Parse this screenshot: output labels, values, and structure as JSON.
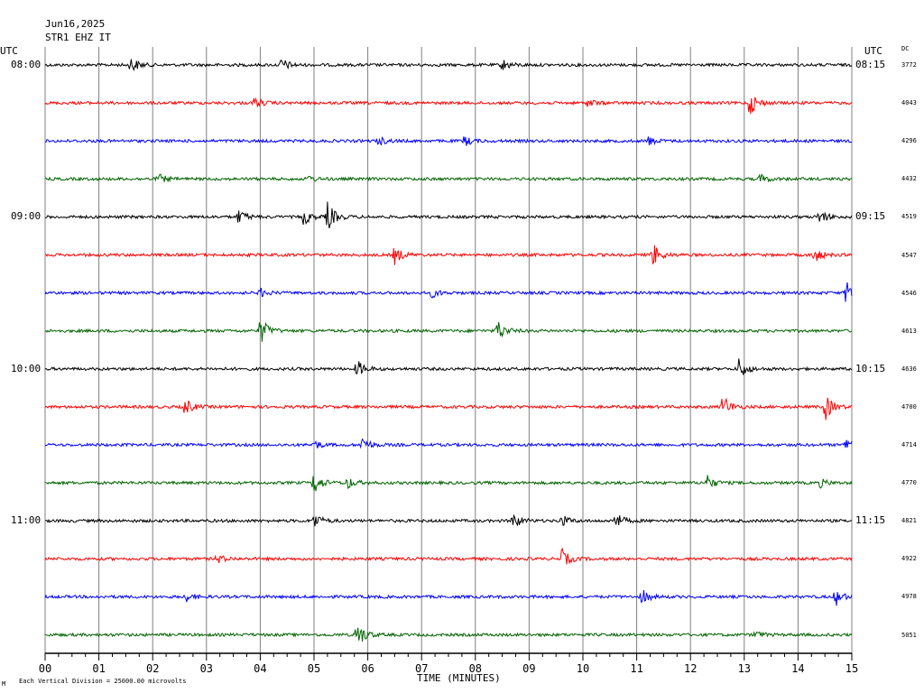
{
  "header": {
    "date": "Jun16,2025",
    "station": "STR1 EHZ IT",
    "utc_left": "UTC",
    "utc_right": "UTC",
    "dc_label": "DC"
  },
  "footer": {
    "xlabel": "TIME (MINUTES)",
    "scale_note": "Each Vertical Division = 25000.00 microvolts",
    "corner_mark": "M"
  },
  "colors": {
    "cycle": [
      "#000000",
      "#ff0000",
      "#0000ff",
      "#006400"
    ],
    "grid": "#808080"
  },
  "chart_data": {
    "type": "line",
    "title": "Jun16,2025",
    "subtitle": "STR1 EHZ IT",
    "xlabel": "TIME (MINUTES)",
    "xlim": [
      0,
      15
    ],
    "xticks": [
      "00",
      "01",
      "02",
      "03",
      "04",
      "05",
      "06",
      "07",
      "08",
      "09",
      "10",
      "11",
      "12",
      "13",
      "14",
      "15"
    ],
    "left_time_labels": [
      "08:00",
      "",
      "",
      "",
      "09:00",
      "",
      "",
      "",
      "10:00",
      "",
      "",
      "",
      "11:00",
      "",
      "",
      ""
    ],
    "right_time_labels": [
      "08:15",
      "",
      "",
      "",
      "09:15",
      "",
      "",
      "",
      "10:15",
      "",
      "",
      "",
      "11:15",
      "",
      "",
      ""
    ],
    "dc_offsets": [
      "3772",
      "4043",
      "4296",
      "4432",
      "4519",
      "4547",
      "4546",
      "4613",
      "4636",
      "4700",
      "4714",
      "4770",
      "4821",
      "4922",
      "4978",
      "5051"
    ],
    "traces": [
      {
        "color": "black",
        "bursts": [
          [
            1.6,
            0.55
          ],
          [
            4.4,
            0.45
          ],
          [
            8.5,
            0.4
          ]
        ]
      },
      {
        "color": "red",
        "bursts": [
          [
            3.9,
            0.35
          ],
          [
            10.1,
            0.3
          ],
          [
            13.1,
            0.9
          ]
        ]
      },
      {
        "color": "blue",
        "bursts": [
          [
            6.2,
            0.3
          ],
          [
            7.8,
            0.35
          ],
          [
            11.2,
            0.35
          ]
        ]
      },
      {
        "color": "green",
        "bursts": [
          [
            2.1,
            0.35
          ],
          [
            4.9,
            0.2
          ],
          [
            13.3,
            0.3
          ]
        ]
      },
      {
        "color": "black",
        "bursts": [
          [
            3.6,
            0.5
          ],
          [
            4.8,
            0.55
          ],
          [
            5.25,
            1.0
          ],
          [
            14.4,
            0.5
          ]
        ]
      },
      {
        "color": "red",
        "bursts": [
          [
            6.5,
            0.6
          ],
          [
            11.3,
            0.8
          ],
          [
            14.3,
            0.55
          ]
        ]
      },
      {
        "color": "blue",
        "bursts": [
          [
            4.0,
            0.3
          ],
          [
            7.2,
            0.3
          ],
          [
            14.9,
            0.9
          ]
        ]
      },
      {
        "color": "green",
        "bursts": [
          [
            4.0,
            1.0
          ],
          [
            8.4,
            0.8
          ]
        ]
      },
      {
        "color": "black",
        "bursts": [
          [
            5.8,
            0.6
          ],
          [
            12.9,
            0.75
          ]
        ]
      },
      {
        "color": "red",
        "bursts": [
          [
            2.6,
            0.6
          ],
          [
            12.6,
            0.85
          ],
          [
            14.5,
            0.95
          ]
        ]
      },
      {
        "color": "blue",
        "bursts": [
          [
            5.0,
            0.3
          ],
          [
            5.9,
            0.55
          ],
          [
            14.9,
            0.5
          ]
        ]
      },
      {
        "color": "green",
        "bursts": [
          [
            5.0,
            0.8
          ],
          [
            5.6,
            0.45
          ],
          [
            12.3,
            0.55
          ],
          [
            14.4,
            0.3
          ]
        ]
      },
      {
        "color": "black",
        "bursts": [
          [
            5.0,
            0.55
          ],
          [
            8.7,
            0.55
          ],
          [
            9.6,
            0.4
          ],
          [
            10.6,
            0.6
          ]
        ]
      },
      {
        "color": "red",
        "bursts": [
          [
            3.2,
            0.3
          ],
          [
            9.6,
            0.7
          ]
        ]
      },
      {
        "color": "blue",
        "bursts": [
          [
            2.6,
            0.35
          ],
          [
            11.1,
            0.5
          ],
          [
            14.7,
            0.6
          ]
        ]
      },
      {
        "color": "green",
        "bursts": [
          [
            5.8,
            1.0
          ],
          [
            13.2,
            0.25
          ]
        ]
      }
    ]
  }
}
